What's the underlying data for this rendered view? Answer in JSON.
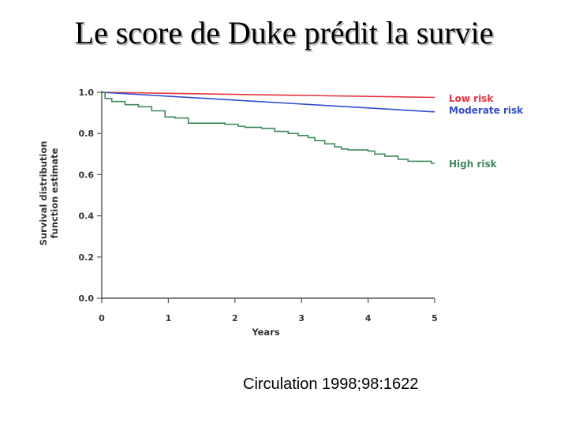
{
  "slide": {
    "title": "Le score de Duke prédit la survie",
    "citation": "Circulation 1998;98:1622"
  },
  "chart_data": {
    "type": "line",
    "title": "",
    "xlabel": "Years",
    "ylabel": "Survival distribution function estimate",
    "ylabel_lines": [
      "Survival distribution",
      "function estimate"
    ],
    "xlim": [
      0,
      5
    ],
    "ylim": [
      0,
      1
    ],
    "x_ticks": [
      0,
      1,
      2,
      3,
      4,
      5
    ],
    "x_tick_labels": [
      "0",
      "1",
      "2",
      "3",
      "4",
      "5"
    ],
    "y_ticks": [
      0,
      0.2,
      0.4,
      0.6,
      0.8,
      1.0
    ],
    "y_tick_labels": [
      "0.0",
      "0.2",
      "0.4",
      "0.6",
      "0.8",
      "1.0"
    ],
    "grid": false,
    "legend_position": "right, at line ends",
    "series": [
      {
        "name": "Low risk",
        "color": "#e8323c",
        "step": false,
        "x": [
          0,
          5
        ],
        "y": [
          1.0,
          0.975
        ]
      },
      {
        "name": "Moderate risk",
        "color": "#2f4bd1",
        "step": false,
        "x": [
          0,
          5
        ],
        "y": [
          1.0,
          0.905
        ]
      },
      {
        "name": "High risk",
        "color": "#3f8a5a",
        "step": true,
        "x": [
          0,
          0.05,
          0.15,
          0.35,
          0.55,
          0.75,
          0.95,
          1.1,
          1.3,
          1.55,
          1.85,
          2.05,
          2.15,
          2.4,
          2.6,
          2.8,
          2.95,
          3.1,
          3.2,
          3.35,
          3.5,
          3.6,
          3.7,
          4.0,
          4.1,
          4.25,
          4.45,
          4.6,
          4.95
        ],
        "y": [
          1.0,
          0.97,
          0.955,
          0.94,
          0.93,
          0.91,
          0.88,
          0.875,
          0.85,
          0.85,
          0.845,
          0.835,
          0.83,
          0.825,
          0.81,
          0.8,
          0.79,
          0.78,
          0.765,
          0.75,
          0.735,
          0.725,
          0.72,
          0.715,
          0.7,
          0.69,
          0.675,
          0.665,
          0.655
        ]
      }
    ]
  }
}
